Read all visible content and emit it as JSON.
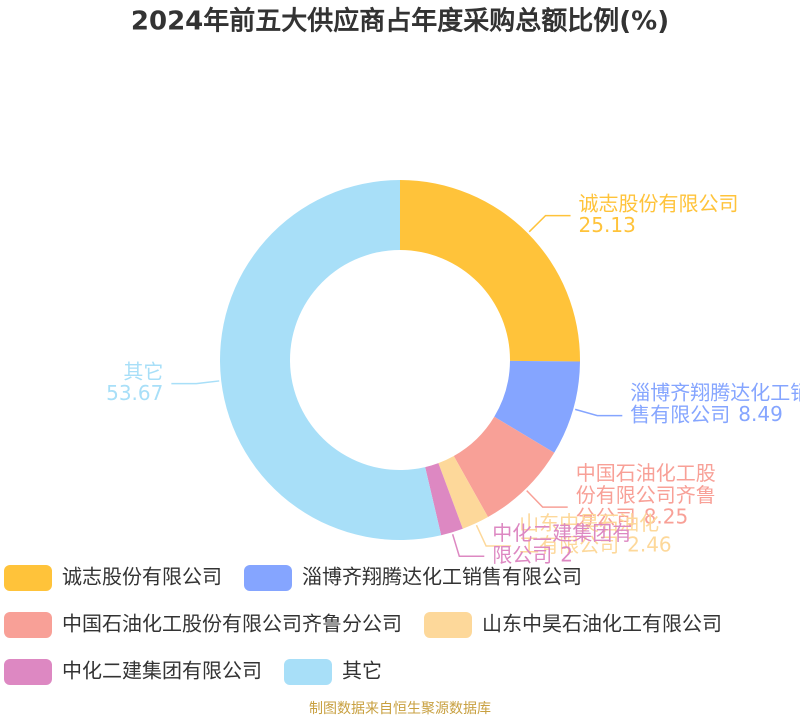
{
  "chart_data": {
    "type": "donut",
    "title": "2024年前五大供应商占年度采购总额比例(%)",
    "categories": [
      "诚志股份有限公司",
      "淄博齐翔腾达化工销售有限公司",
      "中国石油化工股份有限公司齐鲁分公司",
      "山东中昊石油化工有限公司",
      "中化二建集团有限公司",
      "其它"
    ],
    "values": [
      25.13,
      8.49,
      8.25,
      2.46,
      2,
      53.67
    ],
    "colors": [
      "#ffc33a",
      "#85a5ff",
      "#f8a097",
      "#fdd89a",
      "#dd88c2",
      "#a8dff8"
    ],
    "legend": "bottom",
    "source": "制图数据来自恒生聚源数据库"
  }
}
